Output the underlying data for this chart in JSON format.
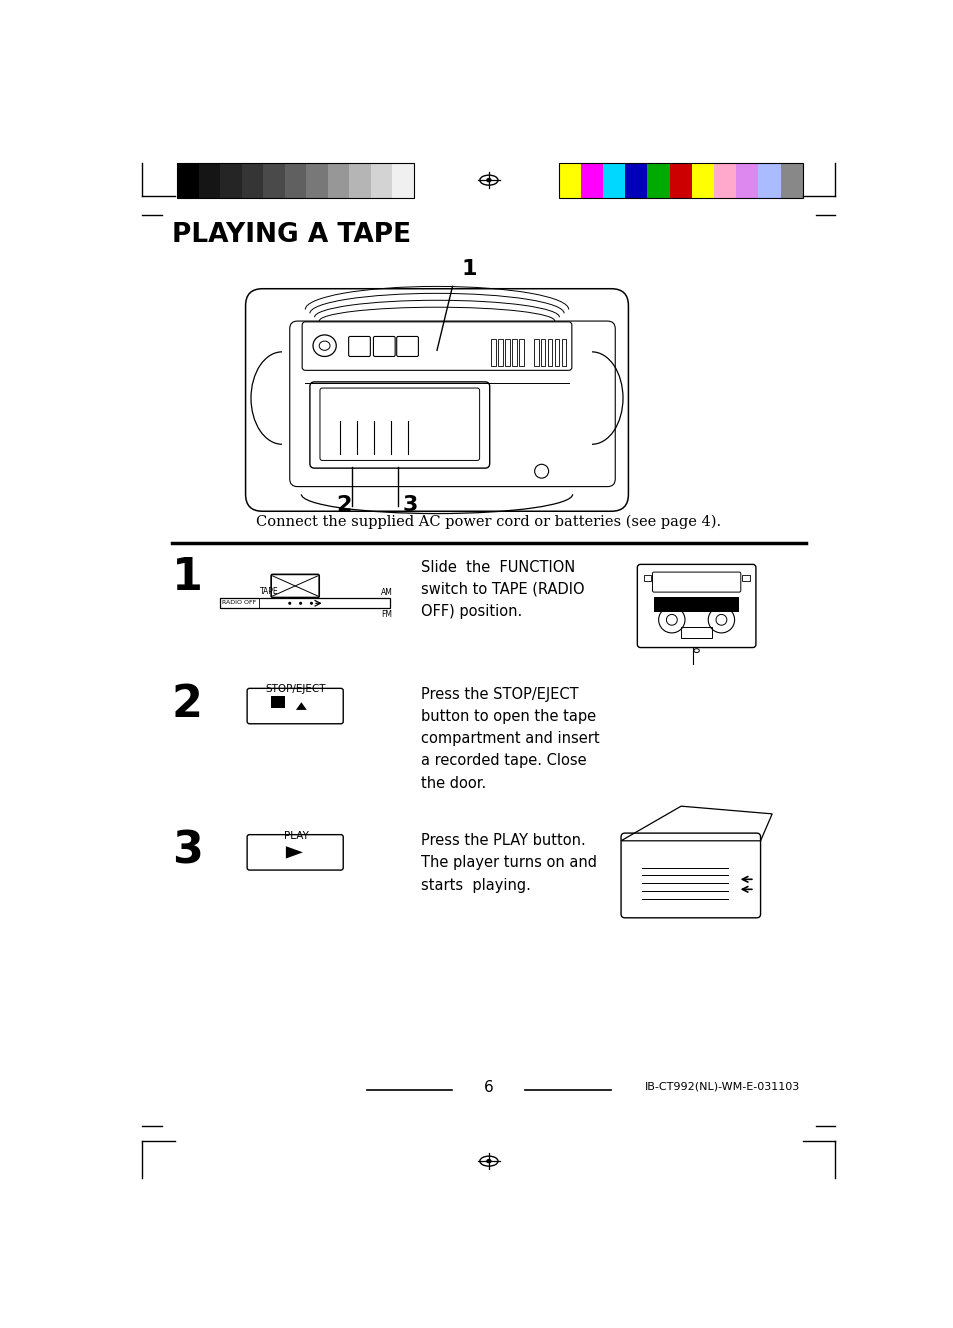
{
  "title": "PLAYING A TAPE",
  "bg_color": "#ffffff",
  "text_color": "#000000",
  "page_number": "6",
  "page_ref": "IB-CT992(NL)-WM-E-031103",
  "intro_text": "Connect the supplied AC power cord or batteries (see page 4).",
  "step1_text": "Slide  the  FUNCTION\nswitch to TAPE (RADIO\nOFF) position.",
  "step2_text": "Press the STOP/EJECT\nbutton to open the tape\ncompartment and insert\na recorded tape. Close\nthe door.",
  "step3_text": "Press the PLAY button.\nThe player turns on and\nstarts  playing.",
  "color_bars_left": [
    "#000000",
    "#151515",
    "#252525",
    "#353535",
    "#4a4a4a",
    "#606060",
    "#787878",
    "#979797",
    "#b5b5b5",
    "#d3d3d3",
    "#f0f0f0"
  ],
  "color_bars_right": [
    "#ffff00",
    "#ff00ff",
    "#00d8ff",
    "#0000bb",
    "#00aa00",
    "#cc0000",
    "#ffff00",
    "#ffaacc",
    "#dd88ee",
    "#aabbff",
    "#888888"
  ]
}
